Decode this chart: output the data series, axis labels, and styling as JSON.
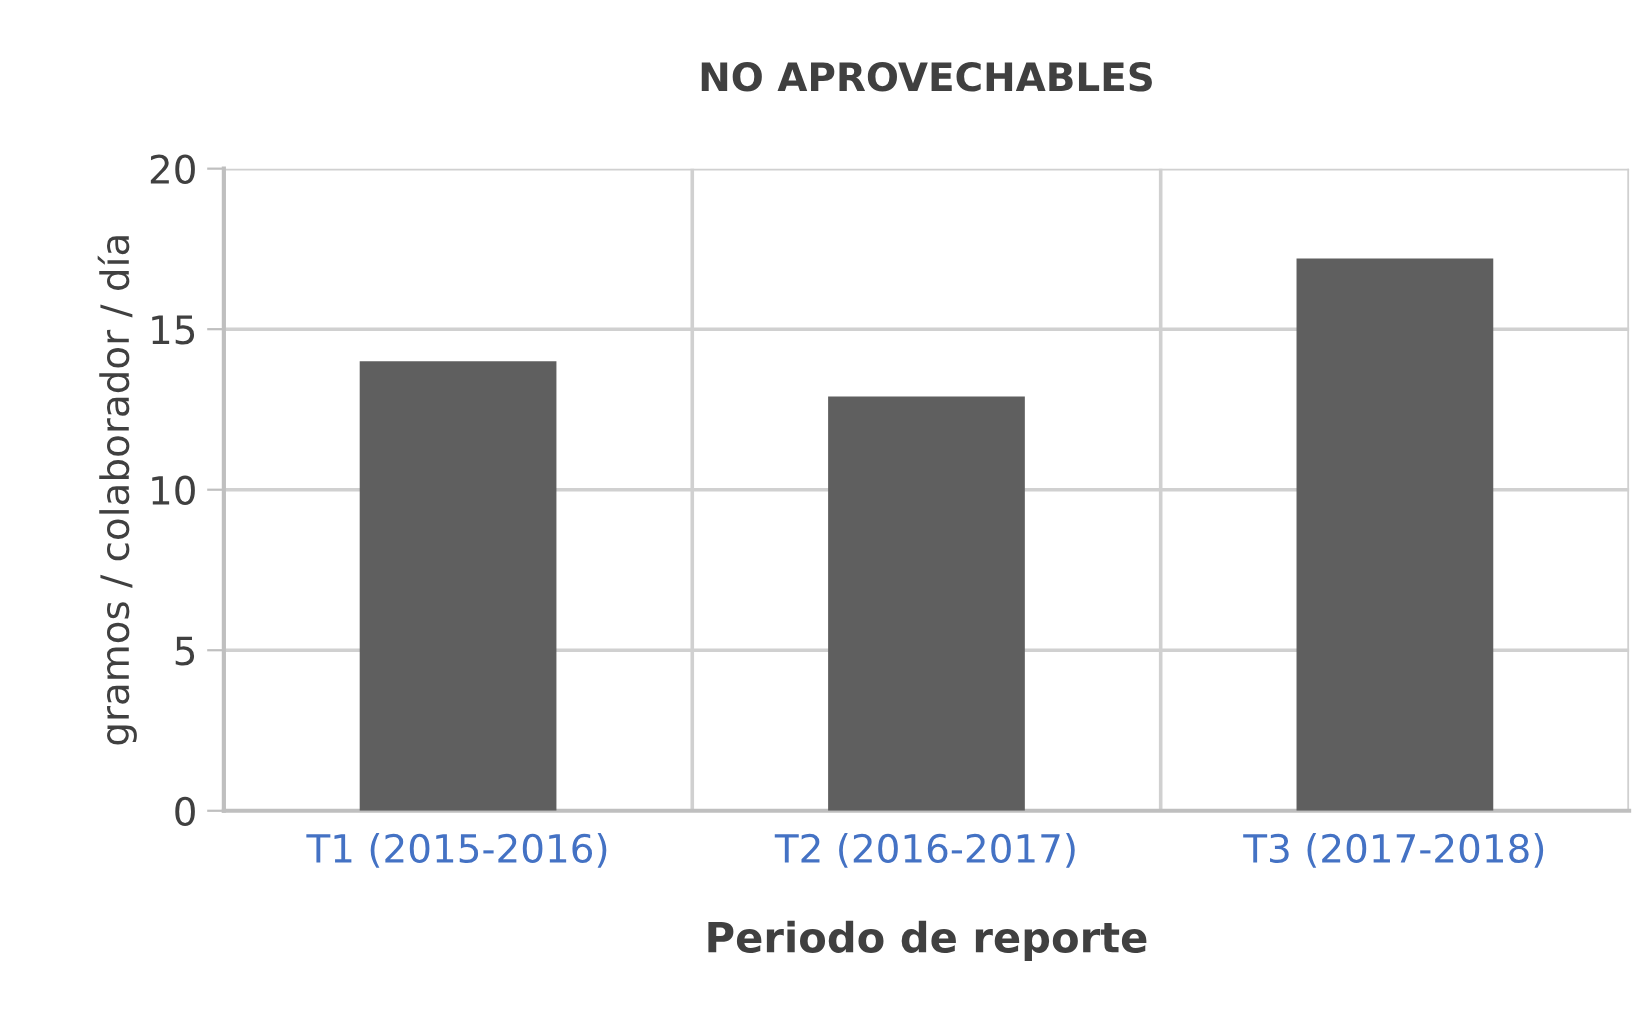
{
  "chart_data": {
    "type": "bar",
    "title": "NO APROVECHABLES",
    "xlabel": "Periodo de reporte",
    "ylabel": "gramos / colaborador / día",
    "categories": [
      "T1 (2015-2016)",
      "T2 (2016-2017)",
      "T3 (2017-2018)"
    ],
    "values": [
      14.0,
      12.9,
      17.2
    ],
    "color": "#5f5f5f",
    "ylim": [
      0,
      20
    ],
    "yticks": [
      0,
      5,
      10,
      15,
      20
    ],
    "grid": true
  }
}
